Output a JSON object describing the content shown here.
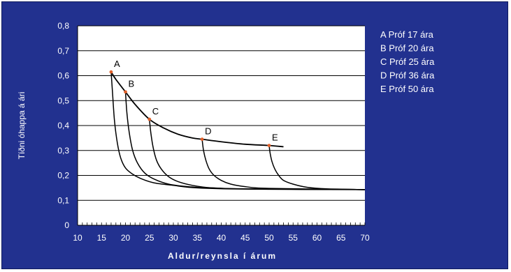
{
  "chart_data": {
    "type": "line",
    "title": "",
    "xlabel": "Aldur/reynsla í árum",
    "ylabel": "Tíðni óhappa á ári",
    "xlim": [
      10,
      70
    ],
    "ylim": [
      0,
      0.8
    ],
    "x_ticks": [
      "10",
      "15",
      "20",
      "25",
      "30",
      "35",
      "40",
      "45",
      "50",
      "55",
      "60",
      "65",
      "70"
    ],
    "y_ticks": [
      "0",
      "0,1",
      "0,2",
      "0,3",
      "0,4",
      "0,5",
      "0,6",
      "0,7",
      "0,8"
    ],
    "grid": "horizontal",
    "legend_position": "right",
    "legend": [
      "A Próf 17 ára",
      "B Próf 20 ára",
      "C Próf 25 ára",
      "D Próf 36 ára",
      "E Próf 50 ára"
    ],
    "age_curve": {
      "x": [
        17,
        18,
        20,
        22,
        25,
        28,
        31,
        34,
        36,
        40,
        45,
        50,
        53
      ],
      "y": [
        0.615,
        0.585,
        0.535,
        0.485,
        0.425,
        0.39,
        0.365,
        0.35,
        0.345,
        0.335,
        0.325,
        0.32,
        0.315
      ]
    },
    "points": [
      {
        "label": "A",
        "x": 17,
        "y": 0.615
      },
      {
        "label": "B",
        "x": 20,
        "y": 0.535
      },
      {
        "label": "C",
        "x": 25,
        "y": 0.425
      },
      {
        "label": "D",
        "x": 36,
        "y": 0.345
      },
      {
        "label": "E",
        "x": 50,
        "y": 0.32
      }
    ],
    "series": [
      {
        "x": [
          17,
          17.3,
          17.7,
          18.3,
          19,
          20,
          21.5,
          23.5,
          26,
          30,
          35,
          45,
          70
        ],
        "y": [
          0.615,
          0.53,
          0.42,
          0.33,
          0.27,
          0.23,
          0.205,
          0.185,
          0.17,
          0.16,
          0.15,
          0.145,
          0.143
        ]
      },
      {
        "x": [
          20,
          20.3,
          20.8,
          21.5,
          22.5,
          24,
          26,
          29,
          33,
          38,
          45,
          70
        ],
        "y": [
          0.535,
          0.45,
          0.37,
          0.3,
          0.25,
          0.21,
          0.185,
          0.165,
          0.155,
          0.15,
          0.146,
          0.143
        ]
      },
      {
        "x": [
          25,
          25.3,
          25.8,
          26.5,
          27.5,
          29,
          31,
          34,
          38,
          45,
          70
        ],
        "y": [
          0.425,
          0.37,
          0.31,
          0.26,
          0.225,
          0.195,
          0.175,
          0.16,
          0.15,
          0.146,
          0.143
        ]
      },
      {
        "x": [
          36,
          36.3,
          36.8,
          37.5,
          38.5,
          40,
          42,
          45,
          50,
          70
        ],
        "y": [
          0.345,
          0.3,
          0.26,
          0.225,
          0.2,
          0.18,
          0.165,
          0.155,
          0.148,
          0.143
        ]
      },
      {
        "x": [
          50,
          50.2,
          50.6,
          51.2,
          52,
          53,
          55,
          58,
          62,
          70
        ],
        "y": [
          0.32,
          0.29,
          0.255,
          0.225,
          0.2,
          0.18,
          0.165,
          0.152,
          0.146,
          0.143
        ]
      }
    ],
    "colors": {
      "background": "#22318f",
      "plot": "#ffffff",
      "line": "#000000",
      "point": "#e0602a"
    }
  }
}
